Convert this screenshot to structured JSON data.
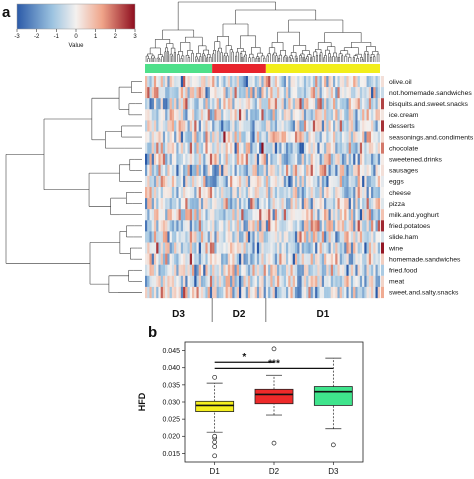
{
  "chart_data": [
    {
      "type": "heatmap",
      "panel_label": "a",
      "colorbar": {
        "label": "Value",
        "ticks": [
          "-3",
          "-2",
          "-1",
          "0",
          "1",
          "2",
          "3"
        ],
        "range": [
          -3,
          3
        ],
        "colors": [
          "#2b5aa8",
          "#9cc3e0",
          "#f4f1ef",
          "#f0a58a",
          "#8e0d1e"
        ]
      },
      "rows": [
        "olive.oil",
        "not.homemade.sandwiches",
        "bisquits.and.sweet.snacks",
        "ice.cream",
        "desserts",
        "seasonings.and.condiments",
        "chocolate",
        "sweetened.drinks",
        "sausages",
        "eggs",
        "cheese",
        "pizza",
        "milk.and.yoghurt",
        "fried.potatoes",
        "slide.ham",
        "wine",
        "homemade.sandwiches",
        "fried.food",
        "meat",
        "sweet.and.salty.snacks"
      ],
      "clusters": [
        {
          "name": "D3",
          "color": "#4ee08a",
          "columns": 30
        },
        {
          "name": "D2",
          "color": "#e8242c",
          "columns": 24
        },
        {
          "name": "D1",
          "color": "#f2ee1a",
          "columns": 51
        }
      ]
    },
    {
      "type": "box",
      "panel_label": "b",
      "ylabel": "HFD",
      "ylim": [
        0.0125,
        0.0475
      ],
      "yticks": [
        "0.015",
        "0.020",
        "0.025",
        "0.030",
        "0.035",
        "0.040",
        "0.045"
      ],
      "categories": [
        "D1",
        "D2",
        "D3"
      ],
      "boxes": [
        {
          "name": "D1",
          "color": "#f5ef1e",
          "whisker_low": 0.0212,
          "q1": 0.0272,
          "median": 0.029,
          "q3": 0.0302,
          "whisker_high": 0.0355,
          "outliers": [
            0.0143,
            0.017,
            0.0183,
            0.0195,
            0.02,
            0.0372
          ]
        },
        {
          "name": "D2",
          "color": "#ee2a2a",
          "whisker_low": 0.0262,
          "q1": 0.0295,
          "median": 0.0322,
          "q3": 0.0337,
          "whisker_high": 0.0378,
          "outliers": [
            0.0455,
            0.018
          ]
        },
        {
          "name": "D3",
          "color": "#3fe48c",
          "whisker_low": 0.0222,
          "q1": 0.029,
          "median": 0.033,
          "q3": 0.0345,
          "whisker_high": 0.0428,
          "outliers": [
            0.0175
          ]
        }
      ],
      "significance": [
        {
          "from": "D1",
          "to": "D2",
          "label": "*"
        },
        {
          "from": "D1",
          "to": "D3",
          "label": "***"
        }
      ]
    }
  ]
}
